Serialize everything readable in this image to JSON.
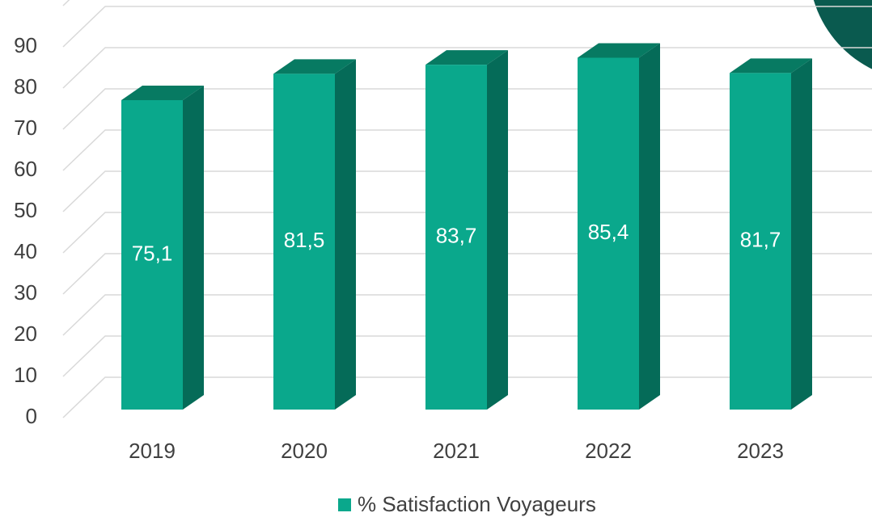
{
  "chart_data": {
    "type": "bar3d",
    "categories": [
      "2019",
      "2020",
      "2021",
      "2022",
      "2023"
    ],
    "series": [
      {
        "name": "% Satisfaction Voyageurs",
        "color": "#0aa88c",
        "values": [
          75.1,
          81.5,
          83.7,
          85.4,
          81.7
        ],
        "value_labels": [
          "75,1",
          "81,5",
          "83,7",
          "85,4",
          "81,7"
        ]
      }
    ],
    "ylim": [
      0,
      100
    ],
    "yticks": [
      0,
      10,
      20,
      30,
      40,
      50,
      60,
      70,
      80,
      90
    ],
    "grid": true
  }
}
